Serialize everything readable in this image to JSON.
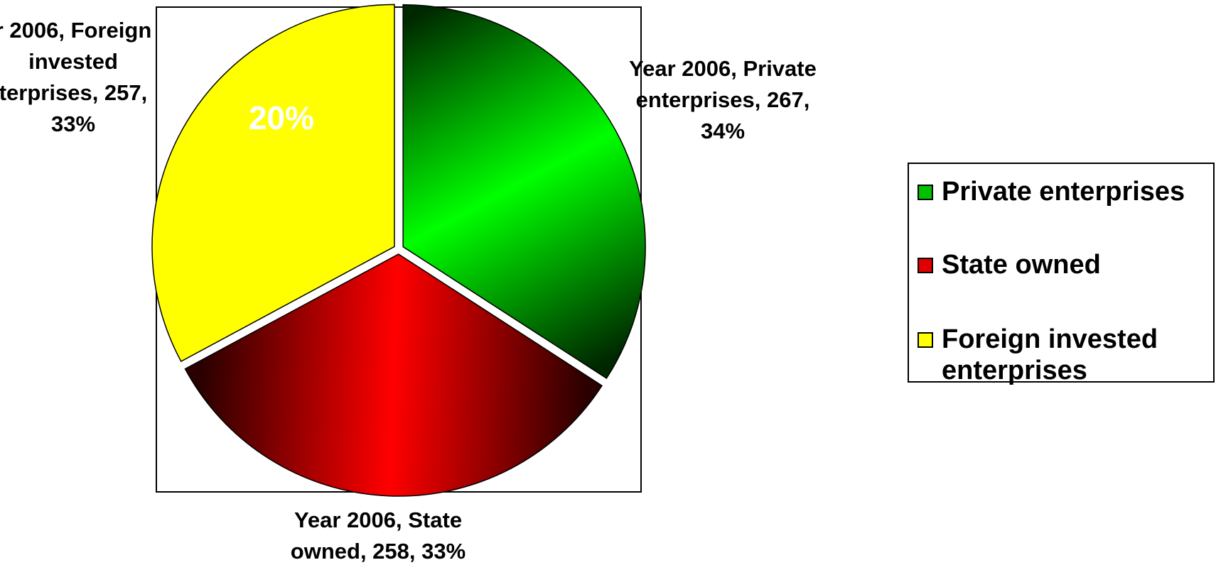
{
  "chart_data": {
    "type": "pie",
    "slices": [
      {
        "category": "Private enterprises",
        "series": "Year 2006",
        "value": 267,
        "percent": "34%",
        "label_lines": [
          "Year 2006, Private",
          "enterprises, 267,",
          "34%"
        ],
        "colors": {
          "light": "#00ff00",
          "dark": "#002800"
        }
      },
      {
        "category": "State owned",
        "series": "Year 2006",
        "value": 258,
        "percent": "33%",
        "label_lines": [
          "Year 2006, State",
          "owned, 258, 33%"
        ],
        "colors": {
          "light": "#ff0000",
          "dark": "#2a0000"
        }
      },
      {
        "category": "Foreign invested enterprises",
        "series": "Year 2006",
        "value": 257,
        "percent": "33%",
        "label_lines": [
          "r 2006, Foreign",
          "invested",
          "terprises, 257,",
          "33%"
        ],
        "colors": {
          "light": "#ffff00",
          "dark": "#ffff00"
        }
      }
    ],
    "overlay_text": "20%",
    "legend": {
      "position": "right",
      "items": [
        {
          "label": "Private enterprises",
          "color": "#00c000"
        },
        {
          "label": "State owned",
          "color": "#e00000"
        },
        {
          "label": "Foreign invested enterprises",
          "color": "#ffff00"
        }
      ]
    }
  }
}
